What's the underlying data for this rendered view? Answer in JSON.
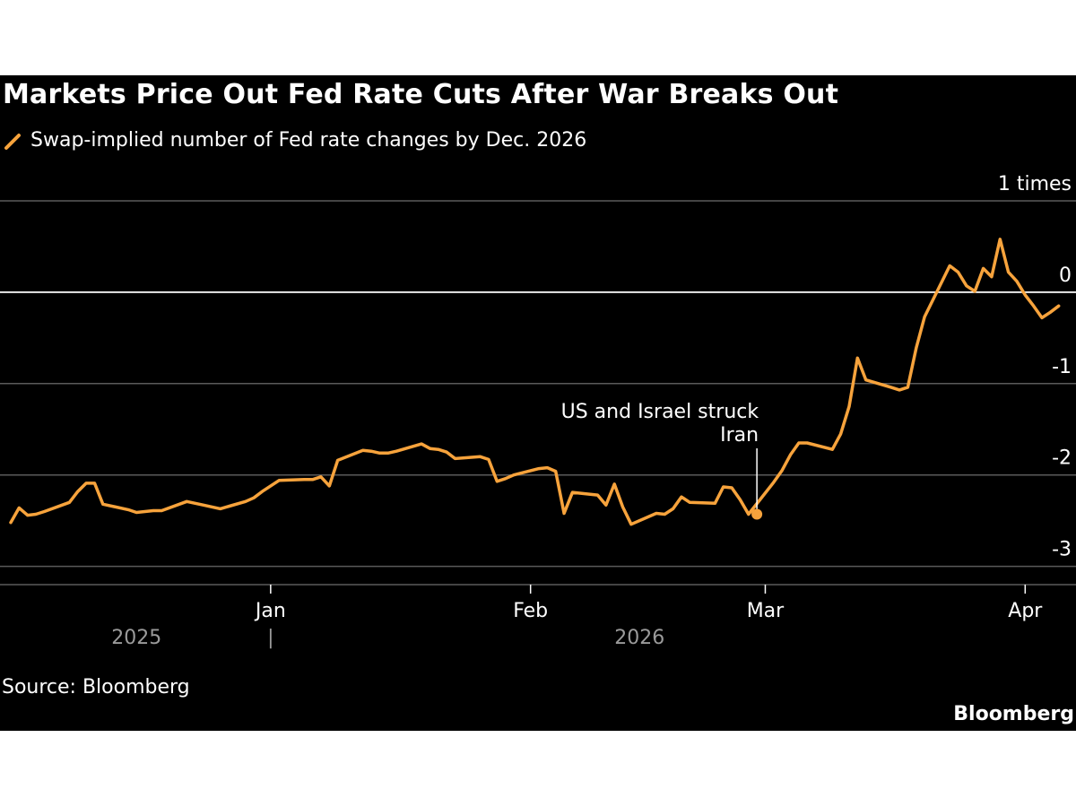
{
  "colors": {
    "background": "#000000",
    "series": "#f7a33c",
    "grid": "#5a5a5a",
    "zero_line": "#ffffff",
    "text": "#ffffff",
    "muted": "#9a9a9a"
  },
  "brand": "Bloomberg",
  "chart_data": {
    "type": "line",
    "title": "Markets Price Out Fed Rate Cuts After War Breaks Out",
    "legend": [
      "Swap-implied number of Fed rate changes by Dec. 2026"
    ],
    "ylabel": "times",
    "ylim": [
      -3.2,
      1
    ],
    "y_ticks": [
      {
        "value": 1,
        "label": "1 times"
      },
      {
        "value": 0,
        "label": "0"
      },
      {
        "value": -1,
        "label": "-1"
      },
      {
        "value": -2,
        "label": "-2"
      },
      {
        "value": -3,
        "label": "-3"
      }
    ],
    "xlim": [
      "2025-12-01",
      "2026-04-03"
    ],
    "x_ticks": [
      {
        "date": "2026-01-01",
        "label": "Jan"
      },
      {
        "date": "2026-02-01",
        "label": "Feb"
      },
      {
        "date": "2026-03-01",
        "label": "Mar"
      },
      {
        "date": "2026-04-01",
        "label": "Apr"
      }
    ],
    "year_labels": [
      {
        "label": "2025",
        "date": "2025-12-16"
      },
      {
        "label": "2026",
        "date": "2026-02-14"
      }
    ],
    "year_separator": "|",
    "annotation": {
      "lines": [
        "US and Israel struck",
        "Iran"
      ],
      "date": "2026-02-28",
      "value": -2.43
    },
    "source": "Source: Bloomberg",
    "series": [
      {
        "name": "Swap-implied number of Fed rate changes by Dec. 2026",
        "points": [
          [
            "2025-12-01",
            -2.52
          ],
          [
            "2025-12-02",
            -2.36
          ],
          [
            "2025-12-03",
            -2.44
          ],
          [
            "2025-12-04",
            -2.43
          ],
          [
            "2025-12-05",
            -2.4
          ],
          [
            "2025-12-08",
            -2.3
          ],
          [
            "2025-12-09",
            -2.18
          ],
          [
            "2025-12-10",
            -2.09
          ],
          [
            "2025-12-11",
            -2.09
          ],
          [
            "2025-12-12",
            -2.32
          ],
          [
            "2025-12-15",
            -2.38
          ],
          [
            "2025-12-16",
            -2.41
          ],
          [
            "2025-12-17",
            -2.4
          ],
          [
            "2025-12-18",
            -2.39
          ],
          [
            "2025-12-19",
            -2.39
          ],
          [
            "2025-12-22",
            -2.29
          ],
          [
            "2025-12-23",
            -2.31
          ],
          [
            "2025-12-24",
            -2.33
          ],
          [
            "2025-12-26",
            -2.37
          ],
          [
            "2025-12-29",
            -2.29
          ],
          [
            "2025-12-30",
            -2.25
          ],
          [
            "2025-12-31",
            -2.18
          ],
          [
            "2026-01-02",
            -2.06
          ],
          [
            "2026-01-05",
            -2.05
          ],
          [
            "2026-01-06",
            -2.05
          ],
          [
            "2026-01-07",
            -2.02
          ],
          [
            "2026-01-08",
            -2.12
          ],
          [
            "2026-01-09",
            -1.84
          ],
          [
            "2026-01-12",
            -1.73
          ],
          [
            "2026-01-13",
            -1.74
          ],
          [
            "2026-01-14",
            -1.76
          ],
          [
            "2026-01-15",
            -1.76
          ],
          [
            "2026-01-16",
            -1.74
          ],
          [
            "2026-01-19",
            -1.66
          ],
          [
            "2026-01-20",
            -1.71
          ],
          [
            "2026-01-21",
            -1.72
          ],
          [
            "2026-01-22",
            -1.75
          ],
          [
            "2026-01-23",
            -1.82
          ],
          [
            "2026-01-26",
            -1.8
          ],
          [
            "2026-01-27",
            -1.83
          ],
          [
            "2026-01-28",
            -2.07
          ],
          [
            "2026-01-29",
            -2.04
          ],
          [
            "2026-01-30",
            -2.0
          ],
          [
            "2026-02-02",
            -1.93
          ],
          [
            "2026-02-03",
            -1.92
          ],
          [
            "2026-02-04",
            -1.96
          ],
          [
            "2026-02-05",
            -2.42
          ],
          [
            "2026-02-06",
            -2.19
          ],
          [
            "2026-02-09",
            -2.22
          ],
          [
            "2026-02-10",
            -2.33
          ],
          [
            "2026-02-11",
            -2.1
          ],
          [
            "2026-02-12",
            -2.35
          ],
          [
            "2026-02-13",
            -2.54
          ],
          [
            "2026-02-16",
            -2.42
          ],
          [
            "2026-02-17",
            -2.43
          ],
          [
            "2026-02-18",
            -2.37
          ],
          [
            "2026-02-19",
            -2.24
          ],
          [
            "2026-02-20",
            -2.3
          ],
          [
            "2026-02-23",
            -2.31
          ],
          [
            "2026-02-24",
            -2.13
          ],
          [
            "2026-02-25",
            -2.14
          ],
          [
            "2026-02-26",
            -2.27
          ],
          [
            "2026-02-27",
            -2.43
          ],
          [
            "2026-03-02",
            -2.08
          ],
          [
            "2026-03-03",
            -1.95
          ],
          [
            "2026-03-04",
            -1.78
          ],
          [
            "2026-03-05",
            -1.65
          ],
          [
            "2026-03-06",
            -1.65
          ],
          [
            "2026-03-09",
            -1.72
          ],
          [
            "2026-03-10",
            -1.55
          ],
          [
            "2026-03-11",
            -1.25
          ],
          [
            "2026-03-12",
            -0.72
          ],
          [
            "2026-03-13",
            -0.96
          ],
          [
            "2026-03-16",
            -1.04
          ],
          [
            "2026-03-17",
            -1.07
          ],
          [
            "2026-03-18",
            -1.04
          ],
          [
            "2026-03-19",
            -0.61
          ],
          [
            "2026-03-20",
            -0.27
          ],
          [
            "2026-03-23",
            0.29
          ],
          [
            "2026-03-24",
            0.22
          ],
          [
            "2026-03-25",
            0.07
          ],
          [
            "2026-03-26",
            0.01
          ],
          [
            "2026-03-27",
            0.26
          ],
          [
            "2026-03-28",
            0.17
          ],
          [
            "2026-03-29",
            0.58
          ],
          [
            "2026-03-30",
            0.22
          ],
          [
            "2026-03-31",
            0.12
          ],
          [
            "2026-04-01",
            -0.03
          ],
          [
            "2026-04-02",
            -0.15
          ],
          [
            "2026-04-03",
            -0.28
          ],
          [
            "2026-04-04",
            -0.22
          ],
          [
            "2026-04-05",
            -0.15
          ]
        ]
      }
    ]
  }
}
